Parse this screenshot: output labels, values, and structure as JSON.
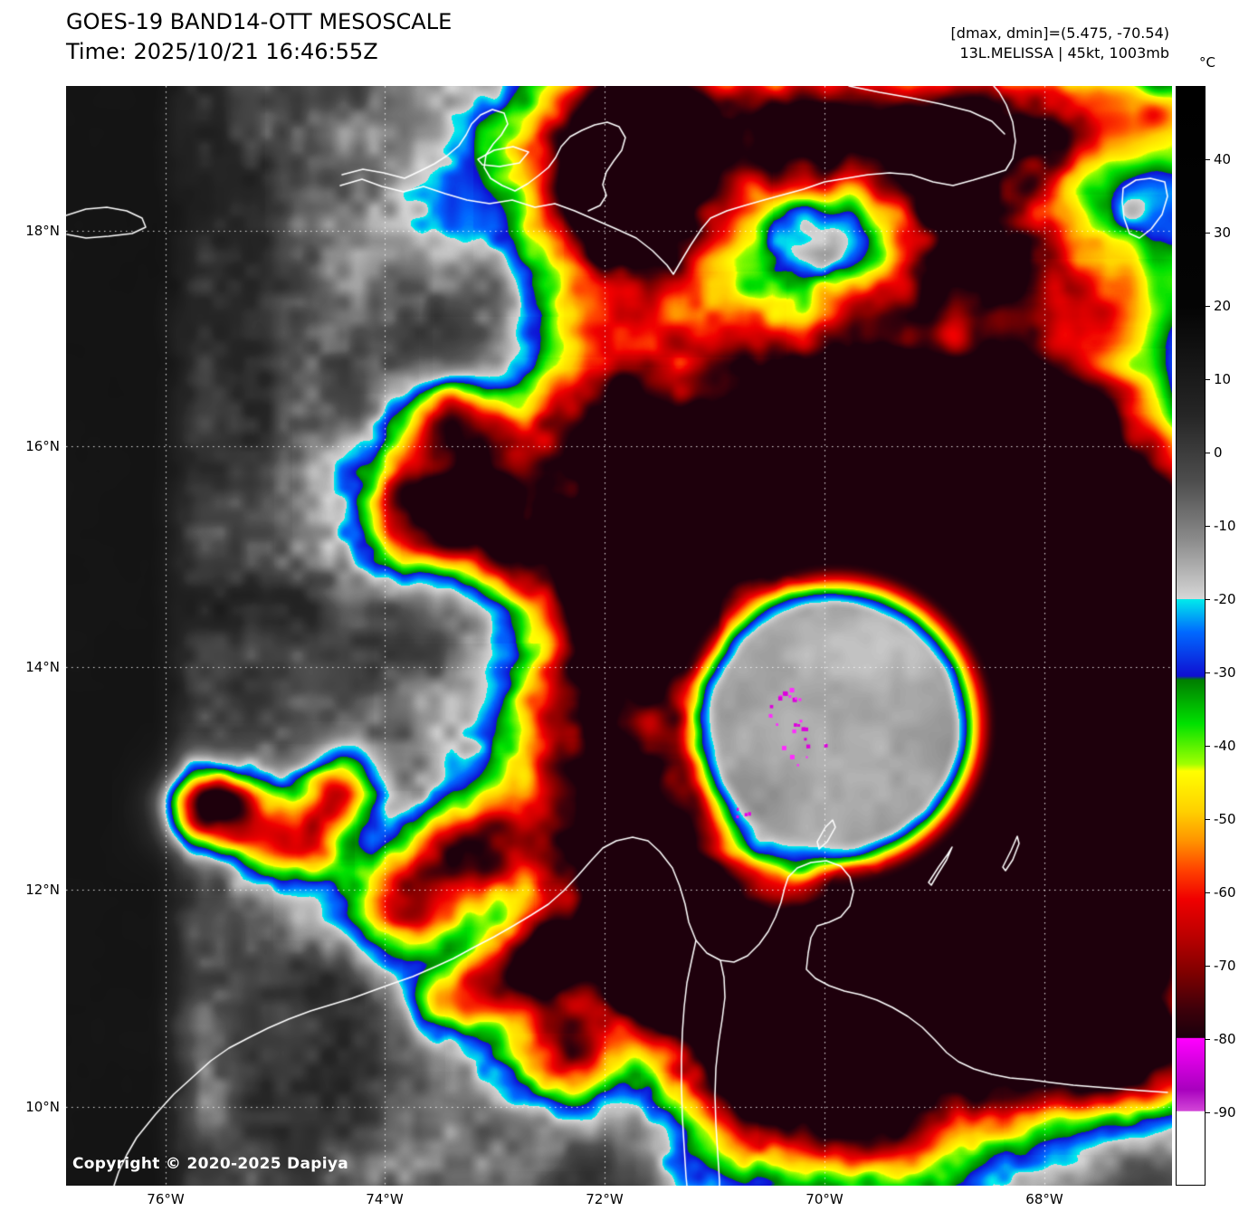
{
  "header": {
    "title": "GOES-19 BAND14-OTT MESOSCALE",
    "time_line": "Time: 2025/10/21 16:46:55Z",
    "dmax_dmin": "[dmax, dmin]=(5.475, -70.54)",
    "storm_info": "13L.MELISSA | 45kt, 1003mb"
  },
  "map": {
    "lat_labels": [
      "18°N",
      "16°N",
      "14°N",
      "12°N",
      "10°N"
    ],
    "lon_labels": [
      "76°W",
      "74°W",
      "72°W",
      "70°W",
      "68°W"
    ],
    "copyright": "Copyright © 2020-2025 Dapiya"
  },
  "colorbar": {
    "unit": "°C",
    "ticks": [
      "40",
      "30",
      "20",
      "10",
      "0",
      "-10",
      "-20",
      "-30",
      "-40",
      "-50",
      "-60",
      "-70",
      "-80",
      "-90"
    ]
  }
}
